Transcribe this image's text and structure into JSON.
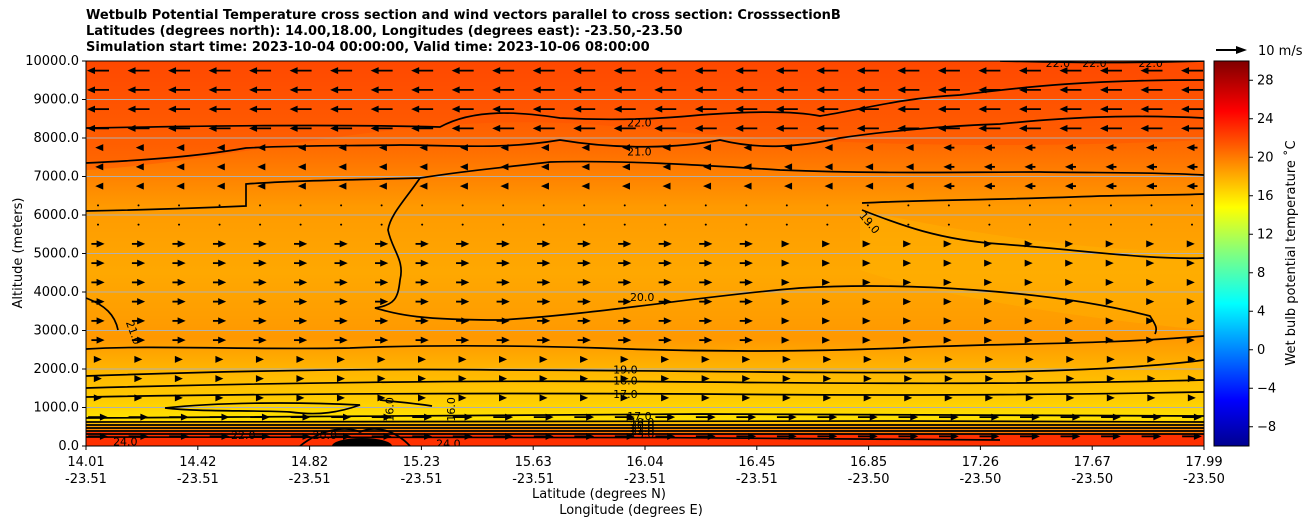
{
  "chart_data": {
    "type": "contour",
    "title": [
      "Wetbulb Potential Temperature cross section and wind vectors parallel to cross section: CrosssectionB",
      "Latitudes (degrees north): 14.00,18.00, Longitudes (degrees east): -23.50,-23.50",
      "Simulation start time: 2023-10-04 00:00:00, Valid time: 2023-10-06 08:00:00"
    ],
    "xlabel_lat": "Latitude (degrees N)",
    "xlabel_lon": "Longitude (degrees E)",
    "ylabel": "Altitude (meters)",
    "x_range": [
      14.01,
      17.99
    ],
    "x_ticks": [
      {
        "lat": "14.01",
        "lon": "-23.51"
      },
      {
        "lat": "14.42",
        "lon": "-23.51"
      },
      {
        "lat": "14.82",
        "lon": "-23.51"
      },
      {
        "lat": "15.23",
        "lon": "-23.51"
      },
      {
        "lat": "15.63",
        "lon": "-23.51"
      },
      {
        "lat": "16.04",
        "lon": "-23.51"
      },
      {
        "lat": "16.45",
        "lon": "-23.51"
      },
      {
        "lat": "16.85",
        "lon": "-23.50"
      },
      {
        "lat": "17.26",
        "lon": "-23.50"
      },
      {
        "lat": "17.67",
        "lon": "-23.50"
      },
      {
        "lat": "17.99",
        "lon": "-23.50"
      }
    ],
    "y_range": [
      0,
      10000
    ],
    "y_ticks": [
      "0.0",
      "1000.0",
      "2000.0",
      "3000.0",
      "4000.0",
      "5000.0",
      "6000.0",
      "7000.0",
      "8000.0",
      "9000.0",
      "10000.0"
    ],
    "y_tick_values": [
      0,
      1000,
      2000,
      3000,
      4000,
      5000,
      6000,
      7000,
      8000,
      9000,
      10000
    ],
    "grid": "horizontal",
    "colorbar": {
      "label": "Wet bulb potential temperature ˚C",
      "range": [
        -10,
        30
      ],
      "ticks": [
        "−8",
        "−4",
        "0",
        "4",
        "8",
        "12",
        "16",
        "20",
        "24",
        "28"
      ],
      "tick_values": [
        -8,
        -4,
        0,
        4,
        8,
        12,
        16,
        20,
        24,
        28
      ]
    },
    "wind_key": {
      "label": "10 m/s",
      "speed": 10
    },
    "contours": [
      {
        "label": "22.0",
        "level": 22,
        "label_x": 15.98,
        "label_y": 8400
      },
      {
        "label": "21.0",
        "level": 21,
        "label_x": 15.98,
        "label_y": 7650
      },
      {
        "label": "19.0",
        "level": 19,
        "label_x": 16.8,
        "label_y": 5800
      },
      {
        "label": "20.0",
        "level": 20,
        "label_x": 15.99,
        "label_y": 3870
      },
      {
        "label": "21.0",
        "level": 21,
        "label_x": 14.18,
        "label_y": 2950
      },
      {
        "label": "19.0",
        "level": 19,
        "label_x": 15.93,
        "label_y": 1990
      },
      {
        "label": "18.0",
        "level": 18,
        "label_x": 15.93,
        "label_y": 1700
      },
      {
        "label": "17.0",
        "level": 17,
        "label_x": 15.93,
        "label_y": 1350
      },
      {
        "label": "17.0",
        "level": 17,
        "label_x": 15.98,
        "label_y": 780
      },
      {
        "label": "16.0",
        "level": 16,
        "label_x": 15.09,
        "label_y": 950
      },
      {
        "label": "16.0",
        "level": 16,
        "label_x": 15.31,
        "label_y": 950
      },
      {
        "label": "24.0",
        "level": 24,
        "label_x": 15.3,
        "label_y": 60
      },
      {
        "label": "22.0",
        "level": 22,
        "label_x": 14.57,
        "label_y": 290
      },
      {
        "label": "20.0",
        "level": 20,
        "label_x": 14.86,
        "label_y": 290
      },
      {
        "label": "24.0",
        "level": 24,
        "label_x": 14.15,
        "label_y": 120
      },
      {
        "label": "22.0",
        "level": 22,
        "label_x": 17.47,
        "label_y": 9950
      },
      {
        "label": "22.0",
        "level": 22,
        "label_x": 17.6,
        "label_y": 9950
      },
      {
        "label": "22.0",
        "level": 22,
        "label_x": 17.8,
        "label_y": 9950
      }
    ],
    "low_level_labels": [
      "19.0",
      "20.0",
      "21.0",
      "22.0",
      "23.0"
    ],
    "colors": {
      "top_field": "#ff4800",
      "mid_field": "#ffa400",
      "low_field": "#ffd800",
      "surface_field": "#ff3000"
    }
  }
}
